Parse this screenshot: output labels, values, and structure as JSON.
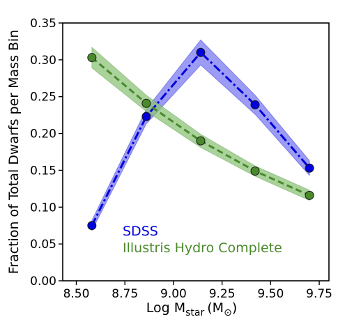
{
  "chart_data": {
    "type": "line",
    "xlabel": "Log M",
    "xlabel_sub": "star",
    "xlabel_unit": "(M",
    "xlabel_unit_symbol": "⊙",
    "xlabel_unit_close": ")",
    "ylabel": "Fraction of Total Dwarfs per Mass Bin",
    "xlim": [
      8.43,
      9.8
    ],
    "ylim": [
      0.0,
      0.35
    ],
    "x_ticks": [
      8.5,
      8.75,
      9.0,
      9.25,
      9.5,
      9.75
    ],
    "x_tick_labels": [
      "8.50",
      "8.75",
      "9.00",
      "9.25",
      "9.50",
      "9.75"
    ],
    "y_ticks": [
      0.0,
      0.05,
      0.1,
      0.15,
      0.2,
      0.25,
      0.3,
      0.35
    ],
    "y_tick_labels": [
      "0.00",
      "0.05",
      "0.10",
      "0.15",
      "0.20",
      "0.25",
      "0.30",
      "0.35"
    ],
    "grid": false,
    "legend_position": "lower-left",
    "series": [
      {
        "name": "SDSS",
        "color": "#0000dd",
        "fill_color": "#7b7bf0",
        "line_style": "dash-dot",
        "x": [
          8.58,
          8.86,
          9.14,
          9.42,
          9.7
        ],
        "y": [
          0.075,
          0.223,
          0.31,
          0.239,
          0.153
        ],
        "y_lower": [
          0.068,
          0.213,
          0.293,
          0.226,
          0.143
        ],
        "y_upper": [
          0.082,
          0.233,
          0.327,
          0.252,
          0.163
        ]
      },
      {
        "name": "Illustris Hydro Complete",
        "color": "#4a8a2c",
        "fill_color": "#8cc47a",
        "line_style": "dashed",
        "x": [
          8.58,
          8.86,
          9.14,
          9.42,
          9.7
        ],
        "y": [
          0.303,
          0.241,
          0.19,
          0.149,
          0.116
        ],
        "y_lower": [
          0.289,
          0.23,
          0.181,
          0.142,
          0.109
        ],
        "y_upper": [
          0.317,
          0.252,
          0.199,
          0.156,
          0.123
        ]
      }
    ]
  }
}
